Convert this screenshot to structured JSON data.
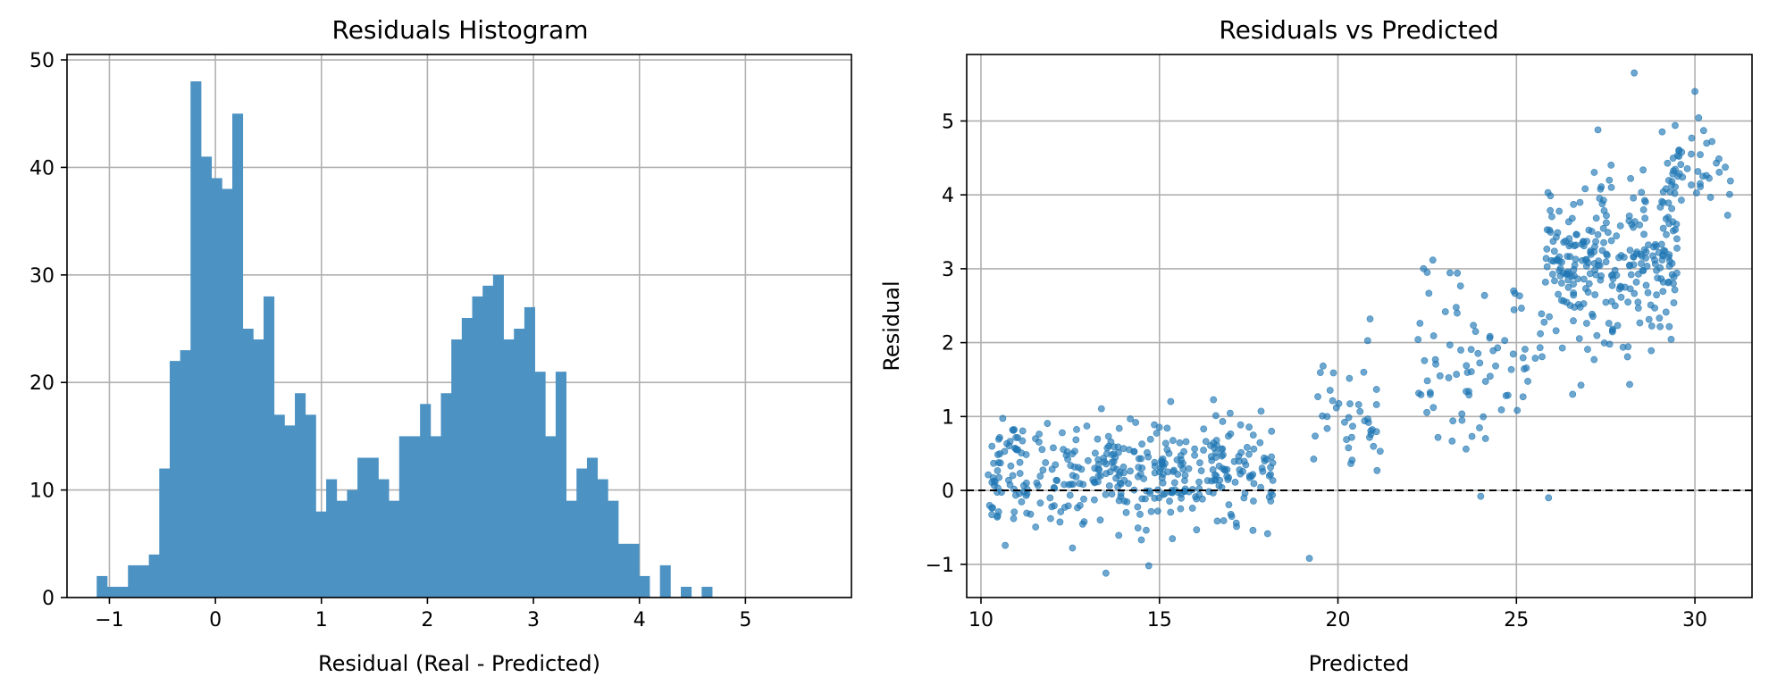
{
  "chart_data": [
    {
      "type": "bar",
      "title": "Residuals Histogram",
      "xlabel": "Residual (Real - Predicted)",
      "ylabel": "",
      "xlim": [
        -1.4,
        6.0
      ],
      "ylim": [
        0,
        50.5
      ],
      "xticks": [
        -1,
        0,
        1,
        2,
        3,
        4,
        5
      ],
      "xtick_labels": [
        "−1",
        "0",
        "1",
        "2",
        "3",
        "4",
        "5"
      ],
      "yticks": [
        0,
        10,
        20,
        30,
        40,
        50
      ],
      "ytick_labels": [
        "0",
        "10",
        "20",
        "30",
        "40",
        "50"
      ],
      "grid": true,
      "bin_start": -1.12,
      "bin_width": 0.0984,
      "values": [
        2,
        1,
        1,
        3,
        3,
        4,
        12,
        22,
        23,
        48,
        41,
        39,
        38,
        45,
        25,
        24,
        28,
        17,
        16,
        19,
        17,
        8,
        11,
        9,
        10,
        13,
        13,
        11,
        9,
        15,
        15,
        18,
        15,
        19,
        24,
        26,
        28,
        29,
        30,
        24,
        25,
        27,
        21,
        15,
        21,
        9,
        12,
        13,
        11,
        9,
        5,
        5,
        2,
        0,
        3,
        0,
        1,
        0,
        1
      ],
      "color": "#4c92c3"
    },
    {
      "type": "scatter",
      "title": "Residuals vs Predicted",
      "xlabel": "Predicted",
      "ylabel": "Residual",
      "xlim": [
        9.6,
        31.6
      ],
      "ylim": [
        -1.45,
        5.9
      ],
      "xticks": [
        10,
        15,
        20,
        25,
        30
      ],
      "xtick_labels": [
        "10",
        "15",
        "20",
        "25",
        "30"
      ],
      "yticks": [
        -1,
        0,
        1,
        2,
        3,
        4,
        5
      ],
      "ytick_labels": [
        "−1",
        "0",
        "1",
        "2",
        "3",
        "4",
        "5"
      ],
      "grid": true,
      "reference_line_y": 0,
      "color": "#1f77b4",
      "clusters": [
        {
          "x_range": [
            10.2,
            18.2
          ],
          "y_center": 0.25,
          "y_spread": 0.34,
          "count": 380
        },
        {
          "x_range": [
            19.3,
            21.3
          ],
          "y_center": 0.95,
          "y_spread": 0.38,
          "count": 40
        },
        {
          "x_range": [
            22.2,
            25.8
          ],
          "y_center": 1.75,
          "y_spread": 0.55,
          "count": 80
        },
        {
          "x_range": [
            25.8,
            29.5
          ],
          "y_center": 3.1,
          "y_spread": 0.55,
          "count": 270
        },
        {
          "x_range": [
            29.0,
            31.0
          ],
          "y_center": 4.2,
          "y_spread": 0.45,
          "count": 50
        }
      ],
      "highlighted_points": [
        {
          "x": 28.3,
          "y": 5.65
        },
        {
          "x": 30.0,
          "y": 5.4
        },
        {
          "x": 13.5,
          "y": -1.12
        },
        {
          "x": 14.7,
          "y": -1.02
        },
        {
          "x": 19.2,
          "y": -0.92
        },
        {
          "x": 25.9,
          "y": -0.1
        },
        {
          "x": 24.0,
          "y": -0.08
        },
        {
          "x": 20.9,
          "y": 2.32
        },
        {
          "x": 22.5,
          "y": 2.95
        }
      ]
    }
  ]
}
